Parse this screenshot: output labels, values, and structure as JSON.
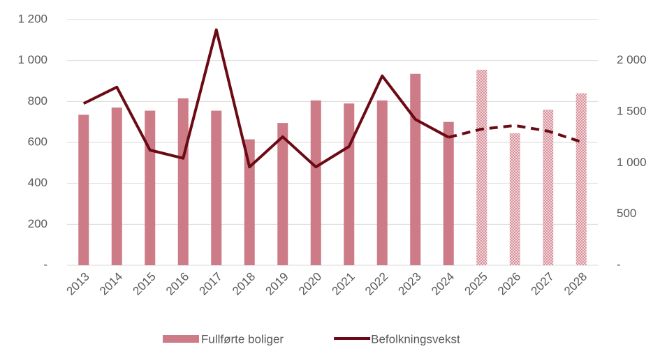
{
  "chart_data": {
    "type": "bar_line",
    "categories": [
      "2013",
      "2014",
      "2015",
      "2016",
      "2017",
      "2018",
      "2019",
      "2020",
      "2021",
      "2022",
      "2023",
      "2024",
      "2025",
      "2026",
      "2027",
      "2028"
    ],
    "forecast_from": "2025",
    "series": [
      {
        "name": "Fullførte boliger",
        "type": "bar",
        "color": "#cd7b87",
        "values": [
          735,
          770,
          755,
          815,
          755,
          615,
          695,
          805,
          790,
          805,
          935,
          700,
          955,
          645,
          760,
          840
        ]
      },
      {
        "name": "Befolkningsvekst",
        "type": "line",
        "axis": "y2",
        "color": "#6b0a14",
        "values": [
          1580,
          1740,
          1125,
          1045,
          2300,
          960,
          1255,
          960,
          1160,
          1850,
          1425,
          1250,
          1330,
          1365,
          1310,
          1205
        ]
      }
    ],
    "ylim": [
      0,
      1200
    ],
    "yticks": [
      {
        "value": 0,
        "label": "-"
      },
      200,
      400,
      600,
      800,
      {
        "value": 1000,
        "label": "1 000"
      },
      {
        "value": 1200,
        "label": "1 200"
      }
    ],
    "y2lim": [
      0,
      2400
    ],
    "y2ticks": [
      {
        "value": 0,
        "label": "-"
      },
      500,
      {
        "value": 1000,
        "label": "1 000"
      },
      {
        "value": 1500,
        "label": "1 500"
      },
      {
        "value": 2000,
        "label": "2 000"
      }
    ],
    "grid": true,
    "legend": "bottom"
  }
}
